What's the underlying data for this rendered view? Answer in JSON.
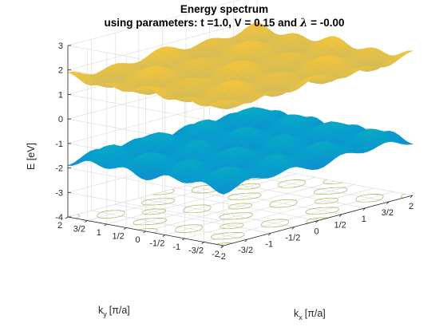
{
  "chart_data": {
    "type": "surface",
    "title": "Energy spectrum",
    "subtitle_prefix": "using parameters: t =1.0, V = 0.15 and ",
    "subtitle_lambda": "λ",
    "subtitle_suffix": " = -0.00",
    "parameters": {
      "t": 1.0,
      "V": 0.15,
      "lambda": -0.0
    },
    "zlabel": "E [eV]",
    "xlabel_main": "k",
    "xlabel_sub": "x",
    "xlabel_unit": "[π/a]",
    "ylabel_main": "k",
    "ylabel_sub": "y",
    "ylabel_unit": "[π/a]",
    "xlim": [
      -2,
      2
    ],
    "ylim": [
      -2,
      2
    ],
    "zlim": [
      -4,
      3
    ],
    "x_ticks": [
      -2,
      -1.5,
      -1,
      -0.5,
      0,
      0.5,
      1,
      1.5,
      2
    ],
    "x_tick_labels": [
      "-2",
      "-3/2",
      "-1",
      "-1/2",
      "0",
      "1/2",
      "1",
      "3/2",
      "2"
    ],
    "y_ticks": [
      -2,
      -1.5,
      -1,
      -0.5,
      0,
      0.5,
      1,
      1.5,
      2
    ],
    "y_tick_labels": [
      "-2",
      "-3/2",
      "-1",
      "-1/2",
      "0",
      "1/2",
      "1",
      "3/2",
      "2"
    ],
    "z_ticks": [
      -4,
      -3,
      -2,
      -1,
      0,
      1,
      2,
      3
    ],
    "z_tick_labels": [
      "-4",
      "-3",
      "-2",
      "-1",
      "0",
      "1",
      "2",
      "3"
    ],
    "grid": true,
    "colormap": "parula",
    "colormap_stops": [
      "#352a87",
      "#0f5cdd",
      "#1481d6",
      "#06a4ca",
      "#2eb7a4",
      "#87bf77",
      "#d1bb59",
      "#fec832",
      "#f9fb0e"
    ],
    "series": [
      {
        "name": "",
        "band": "upper",
        "e_center": 1.55,
        "e_min": 0.15,
        "e_max": 3.0
      },
      {
        "name": "",
        "band": "lower",
        "e_center": -1.55,
        "e_min": -3.0,
        "e_max": -0.15
      }
    ],
    "contour_projection": true
  }
}
